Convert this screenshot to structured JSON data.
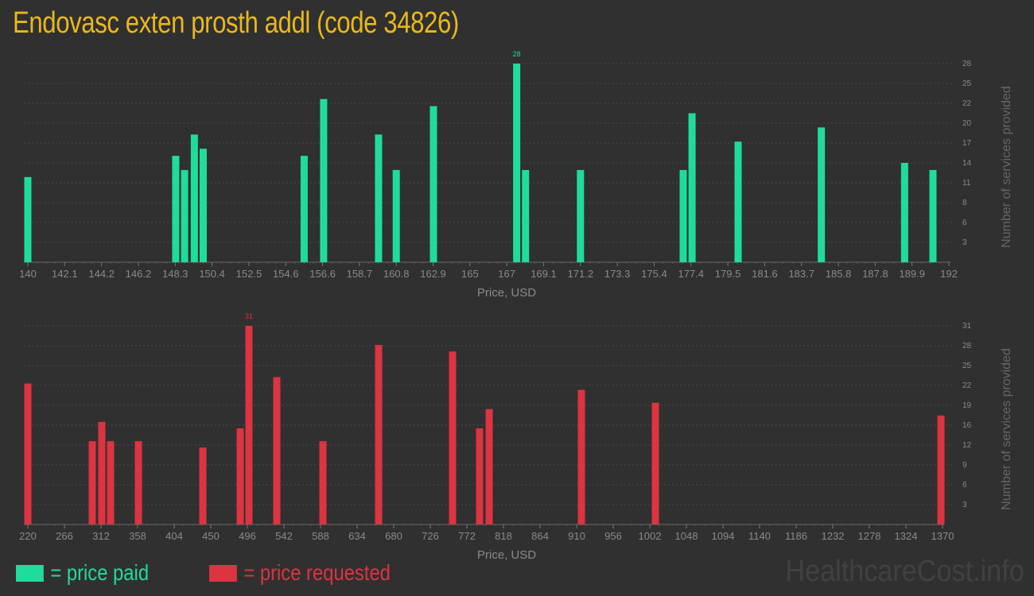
{
  "title": "Endovasc exten prosth addl (code 34826)",
  "colors": {
    "paid": "#20dc9a",
    "requested": "#dc3440",
    "title": "#e9b81c",
    "axis_text": "#8a8a8a",
    "background": "#303030"
  },
  "legend": {
    "paid_label": "= price paid",
    "requested_label": "= price requested"
  },
  "watermark": "HealthcareCost.info",
  "chart_data": [
    {
      "type": "bar",
      "title": "price paid",
      "xlabel": "Price, USD",
      "ylabel": "Number of services provided",
      "x_ticks": [
        "140",
        "142.1",
        "144.2",
        "146.2",
        "148.3",
        "150.4",
        "152.5",
        "154.6",
        "156.6",
        "158.7",
        "160.8",
        "162.9",
        "165",
        "167",
        "169.1",
        "171.2",
        "173.3",
        "175.4",
        "177.4",
        "179.5",
        "181.6",
        "183.7",
        "185.8",
        "187.8",
        "189.9",
        "192"
      ],
      "y_ticks": [
        "3",
        "6",
        "8",
        "11",
        "14",
        "17",
        "20",
        "22",
        "25",
        "28"
      ],
      "xlim": [
        140,
        192
      ],
      "ylim": [
        0,
        28
      ],
      "grid": true,
      "max_label": "28",
      "x": [
        140,
        148.35,
        148.85,
        149.4,
        149.9,
        155.6,
        156.7,
        159.8,
        160.8,
        162.9,
        167.6,
        168.1,
        171.2,
        177.0,
        177.5,
        180.1,
        184.8,
        189.5,
        191.1
      ],
      "values": [
        12,
        15,
        13,
        18,
        16,
        15,
        23,
        18,
        13,
        22,
        28,
        13,
        13,
        13,
        21,
        17,
        19,
        14,
        13
      ]
    },
    {
      "type": "bar",
      "title": "price requested",
      "xlabel": "Price, USD",
      "ylabel": "Number of services provided",
      "x_ticks": [
        "220",
        "266",
        "312",
        "358",
        "404",
        "450",
        "496",
        "542",
        "588",
        "634",
        "680",
        "726",
        "772",
        "818",
        "864",
        "910",
        "956",
        "1002",
        "1048",
        "1094",
        "1140",
        "1186",
        "1232",
        "1278",
        "1324",
        "1370"
      ],
      "y_ticks": [
        "3",
        "6",
        "9",
        "12",
        "16",
        "19",
        "22",
        "25",
        "28",
        "31"
      ],
      "xlim": [
        220,
        1370
      ],
      "ylim": [
        0,
        31
      ],
      "grid": true,
      "max_label": "31",
      "x": [
        220,
        301,
        313,
        324,
        359,
        440,
        487,
        498,
        533,
        591,
        661,
        754,
        788,
        800,
        916,
        1009,
        1368
      ],
      "values": [
        22,
        13,
        16,
        13,
        13,
        12,
        15,
        31,
        23,
        13,
        28,
        27,
        15,
        18,
        21,
        19,
        17
      ]
    }
  ]
}
